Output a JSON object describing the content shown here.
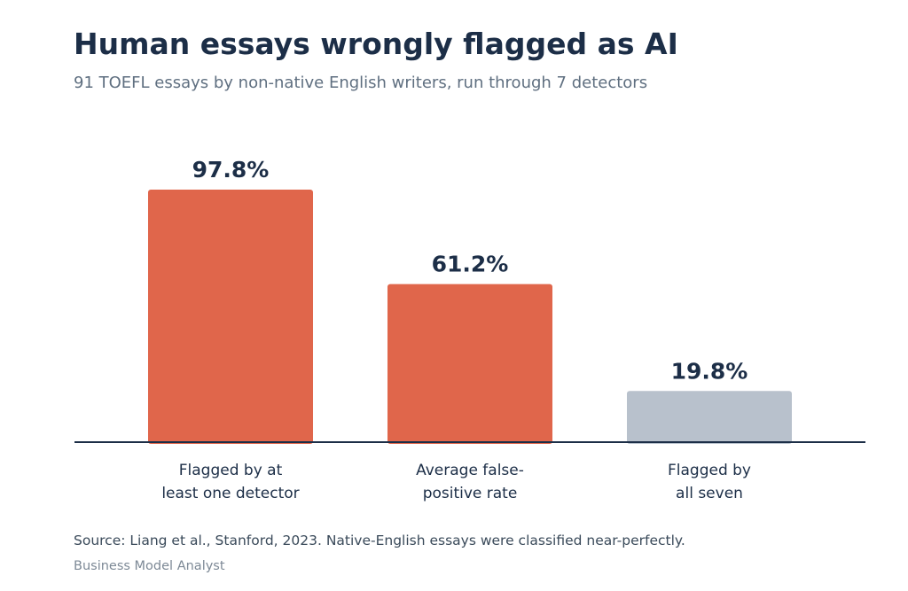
{
  "header": {
    "title": "Human essays wrongly flagged as AI",
    "subtitle": "91 TOEFL essays by non-native English writers, run through 7 detectors"
  },
  "chart_data": {
    "type": "bar",
    "categories": [
      [
        "Flagged by at",
        "least one detector"
      ],
      [
        "Average false-",
        "positive rate"
      ],
      [
        "Flagged by",
        "all seven"
      ]
    ],
    "values": [
      97.8,
      61.2,
      19.8
    ],
    "value_labels": [
      "97.8%",
      "61.2%",
      "19.8%"
    ],
    "bar_colors": [
      "#e0664b",
      "#e0664b",
      "#b8c1cc"
    ],
    "ylim": [
      0,
      100
    ],
    "grid": false,
    "axis_color": "#1c2e47",
    "label_color": "#1c2e47"
  },
  "footer": {
    "source": "Source: Liang et al., Stanford, 2023. Native-English essays were classified near-perfectly.",
    "brand": "Business Model Analyst"
  }
}
